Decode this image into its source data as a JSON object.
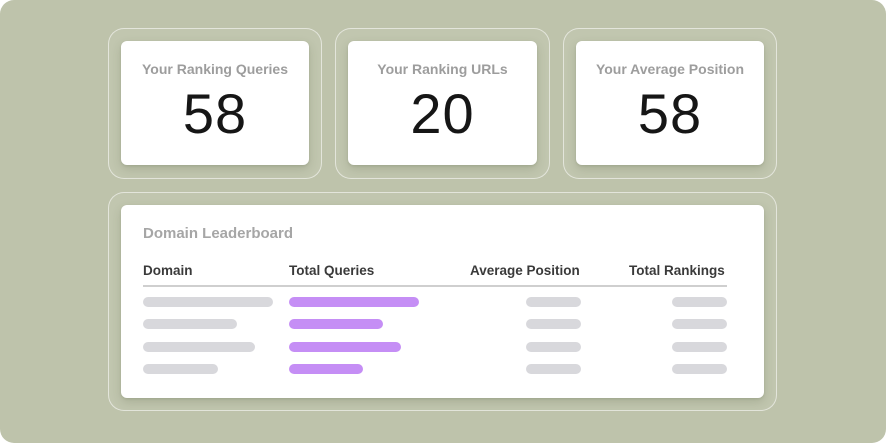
{
  "stats": [
    {
      "label": "Your Ranking Queries",
      "value": "58"
    },
    {
      "label": "Your Ranking URLs",
      "value": "20"
    },
    {
      "label": "Your Average Position",
      "value": "58"
    }
  ],
  "leaderboard": {
    "title": "Domain Leaderboard",
    "columns": [
      "Domain",
      "Total Queries",
      "Average Position",
      "Total Rankings"
    ],
    "rows": [
      {
        "domain_fill": 1.0,
        "queries_fill": 1.0
      },
      {
        "domain_fill": 0.72,
        "queries_fill": 0.72
      },
      {
        "domain_fill": 0.86,
        "queries_fill": 0.86
      },
      {
        "domain_fill": 0.58,
        "queries_fill": 0.57
      }
    ]
  },
  "colors": {
    "background": "#bec3ab",
    "card": "#ffffff",
    "accent_bar": "#c58ef5",
    "placeholder_bar": "#d8d8dc"
  }
}
